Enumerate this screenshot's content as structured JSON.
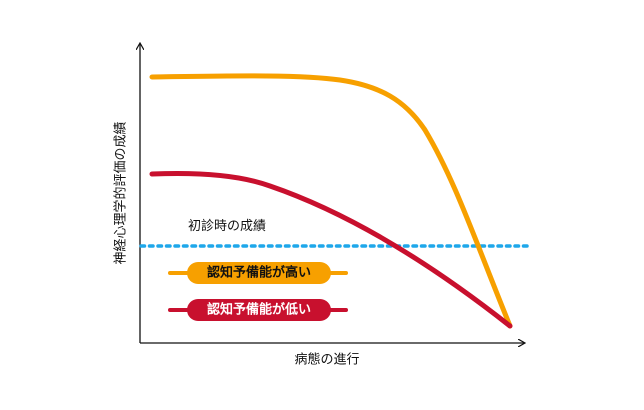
{
  "diagram": {
    "y_axis_label": "神経心理学的評価の成績",
    "x_axis_label": "病態の進行",
    "baseline_label": "初診時の成績",
    "legend": {
      "high": "認知予備能が高い",
      "low": "認知予備能が低い"
    },
    "colors": {
      "high_curve": "#f7a000",
      "low_curve": "#c8102e",
      "baseline": "#1ea7ea",
      "axis": "#111111"
    }
  }
}
